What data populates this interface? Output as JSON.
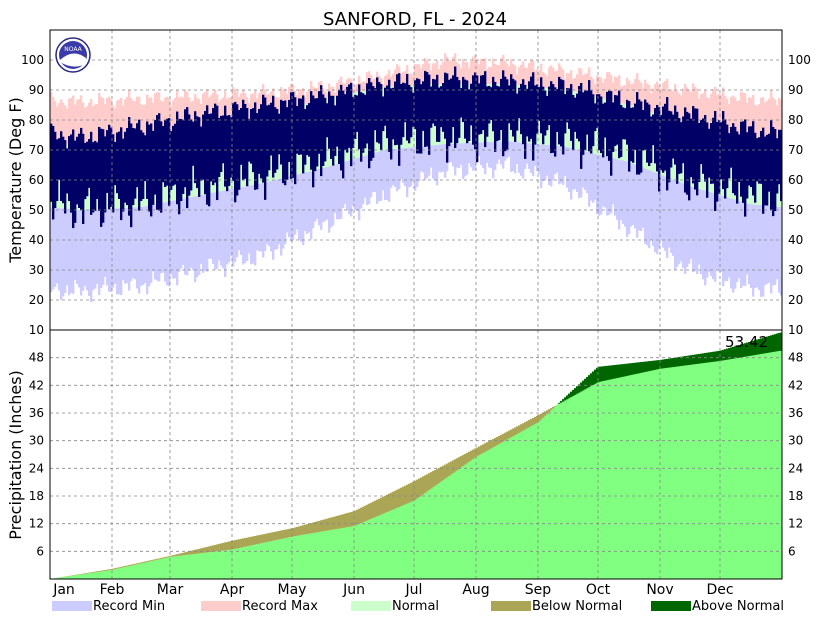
{
  "chart_data": [
    {
      "type": "area",
      "title": "SANFORD, FL - 2024",
      "ylabel": "Temperature (Deg F)",
      "ylim": [
        10,
        110
      ],
      "yticks": [
        10,
        20,
        30,
        40,
        50,
        60,
        70,
        80,
        90,
        100
      ],
      "grid": true,
      "months": [
        "Jan",
        "Feb",
        "Mar",
        "Apr",
        "May",
        "Jun",
        "Jul",
        "Aug",
        "Sep",
        "Oct",
        "Nov",
        "Dec"
      ],
      "series": [
        {
          "name": "Record Max",
          "color": "#ffcccc",
          "values": [
            86,
            87,
            88,
            89,
            91,
            95,
            100,
            99,
            96,
            93,
            90,
            87
          ]
        },
        {
          "name": "Normal",
          "color": "#ccffcc",
          "upper": [
            71,
            73,
            77,
            81,
            87,
            91,
            92,
            92,
            90,
            85,
            78,
            73
          ],
          "lower": [
            50,
            51,
            55,
            59,
            64,
            70,
            72,
            73,
            71,
            66,
            58,
            52
          ]
        },
        {
          "name": "Record Min",
          "color": "#ccccff",
          "values": [
            23,
            25,
            30,
            35,
            45,
            55,
            63,
            65,
            58,
            44,
            30,
            24
          ]
        }
      ],
      "observed_color": "#000066",
      "observed_high": [
        74,
        78,
        82,
        85,
        88,
        92,
        94,
        93,
        91,
        86,
        82,
        77
      ],
      "observed_low": [
        50,
        52,
        57,
        61,
        66,
        72,
        74,
        74,
        73,
        68,
        59,
        55
      ]
    },
    {
      "type": "area",
      "ylabel": "Precipitation (Inches)",
      "ylim": [
        0,
        54
      ],
      "yticks": [
        6,
        12,
        18,
        24,
        30,
        36,
        42,
        48
      ],
      "grid": true,
      "months": [
        "Jan",
        "Feb",
        "Mar",
        "Apr",
        "May",
        "Jun",
        "Jul",
        "Aug",
        "Sep",
        "Oct",
        "Nov",
        "Dec"
      ],
      "x_doy": [
        0,
        31,
        60,
        91,
        121,
        152,
        182,
        213,
        244,
        274,
        305,
        335,
        365
      ],
      "normal_cumulative": [
        0,
        2.2,
        5.0,
        8.3,
        11.0,
        14.7,
        21.2,
        28.4,
        35.5,
        42.7,
        45.6,
        47.3,
        49.5
      ],
      "observed_cumulative": [
        0,
        2.0,
        4.8,
        6.4,
        9.2,
        11.5,
        17.0,
        26.5,
        34.0,
        46.0,
        47.5,
        49.5,
        53.42
      ],
      "total_label": "53.42",
      "colors": {
        "observed": "#80ff80",
        "below_normal": "#aaa655",
        "above_normal": "#006600"
      }
    }
  ],
  "legend": [
    {
      "label": "Record Min",
      "color": "#ccccff"
    },
    {
      "label": "Record Max",
      "color": "#ffcccc"
    },
    {
      "label": "Normal",
      "color": "#ccffcc"
    },
    {
      "label": "Below Normal",
      "color": "#aaa655"
    },
    {
      "label": "Above Normal",
      "color": "#006600"
    }
  ],
  "logo": {
    "text": "NOAA"
  }
}
